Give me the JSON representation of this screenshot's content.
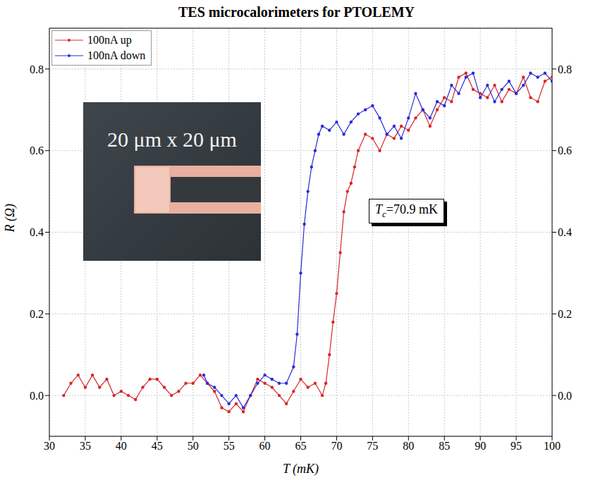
{
  "chart_data": {
    "type": "line",
    "title": "TES microcalorimeters for PTOLEMY",
    "x_label": "T (mK)",
    "y_label": "R (Ω)",
    "xlim": [
      30,
      100
    ],
    "xticks": [
      30,
      35,
      40,
      45,
      50,
      55,
      60,
      65,
      70,
      75,
      80,
      85,
      90,
      95,
      100
    ],
    "ylim": [
      -0.1,
      0.9
    ],
    "yticks": [
      {
        "value": 0,
        "label": "0.0"
      },
      0.2,
      0.4,
      0.6,
      0.8
    ],
    "y2lim": [
      -0.1,
      0.9
    ],
    "y2ticks": [
      {
        "value": 0,
        "label": "0.0"
      },
      0.2,
      0.4,
      0.6,
      0.8
    ],
    "grid": true,
    "legend": "upper left",
    "annotation": {
      "symbol": "T",
      "subscript": "c",
      "text": "=70.9 mK"
    },
    "inset": {
      "text": "20 μm x 20 μm"
    },
    "series": [
      {
        "name": "100nA up",
        "color": "#d62728",
        "marker": "circle",
        "x": [
          32,
          33,
          34,
          35,
          36,
          37,
          38,
          39,
          40,
          41,
          42,
          43,
          44,
          45,
          46,
          47,
          48,
          49,
          50,
          51,
          52,
          53,
          54,
          55,
          56,
          57,
          58,
          59,
          60,
          61,
          62,
          63,
          64,
          65,
          66,
          67,
          68,
          68.5,
          69,
          69.5,
          70,
          70.5,
          71,
          71.5,
          72,
          72.5,
          73,
          74,
          75,
          76,
          77,
          78,
          79,
          80,
          81,
          82,
          83,
          84,
          85,
          86,
          87,
          88,
          89,
          90,
          91,
          92,
          93,
          94,
          95,
          96,
          97,
          98,
          99,
          100
        ],
        "values": [
          0.0,
          0.03,
          0.05,
          0.02,
          0.05,
          0.02,
          0.04,
          0.0,
          0.01,
          0.0,
          -0.01,
          0.02,
          0.04,
          0.04,
          0.02,
          0.0,
          0.01,
          0.03,
          0.03,
          0.05,
          0.03,
          0.01,
          -0.03,
          -0.04,
          -0.02,
          -0.04,
          0.0,
          0.04,
          0.03,
          0.02,
          0.0,
          -0.02,
          0.01,
          0.04,
          0.02,
          0.03,
          0.0,
          0.03,
          0.1,
          0.18,
          0.25,
          0.35,
          0.45,
          0.5,
          0.52,
          0.56,
          0.6,
          0.64,
          0.63,
          0.6,
          0.64,
          0.63,
          0.66,
          0.65,
          0.68,
          0.7,
          0.66,
          0.7,
          0.73,
          0.72,
          0.78,
          0.79,
          0.75,
          0.74,
          0.73,
          0.76,
          0.72,
          0.75,
          0.74,
          0.78,
          0.73,
          0.72,
          0.77,
          0.78
        ]
      },
      {
        "name": "100nA down",
        "color": "#2b2bd6",
        "marker": "circle",
        "x": [
          51.5,
          52,
          53,
          54,
          55,
          56,
          57,
          58,
          59,
          60,
          61,
          62,
          63,
          64,
          64.5,
          65,
          65.5,
          66,
          66.5,
          67,
          67.5,
          68,
          69,
          70,
          71,
          72,
          73,
          74,
          75,
          76,
          77,
          78,
          79,
          80,
          81,
          82,
          83,
          84,
          85,
          86,
          87,
          88,
          89,
          90,
          91,
          92,
          93,
          94,
          95,
          96,
          97,
          98,
          99,
          100
        ],
        "values": [
          0.05,
          0.03,
          0.02,
          0.0,
          -0.02,
          0.0,
          -0.03,
          0.0,
          0.03,
          0.05,
          0.04,
          0.03,
          0.03,
          0.07,
          0.15,
          0.3,
          0.42,
          0.5,
          0.56,
          0.6,
          0.64,
          0.66,
          0.65,
          0.67,
          0.64,
          0.67,
          0.69,
          0.7,
          0.71,
          0.68,
          0.64,
          0.66,
          0.63,
          0.68,
          0.74,
          0.7,
          0.68,
          0.72,
          0.71,
          0.76,
          0.74,
          0.78,
          0.79,
          0.73,
          0.76,
          0.72,
          0.75,
          0.77,
          0.74,
          0.76,
          0.79,
          0.78,
          0.79,
          0.77
        ]
      }
    ]
  }
}
